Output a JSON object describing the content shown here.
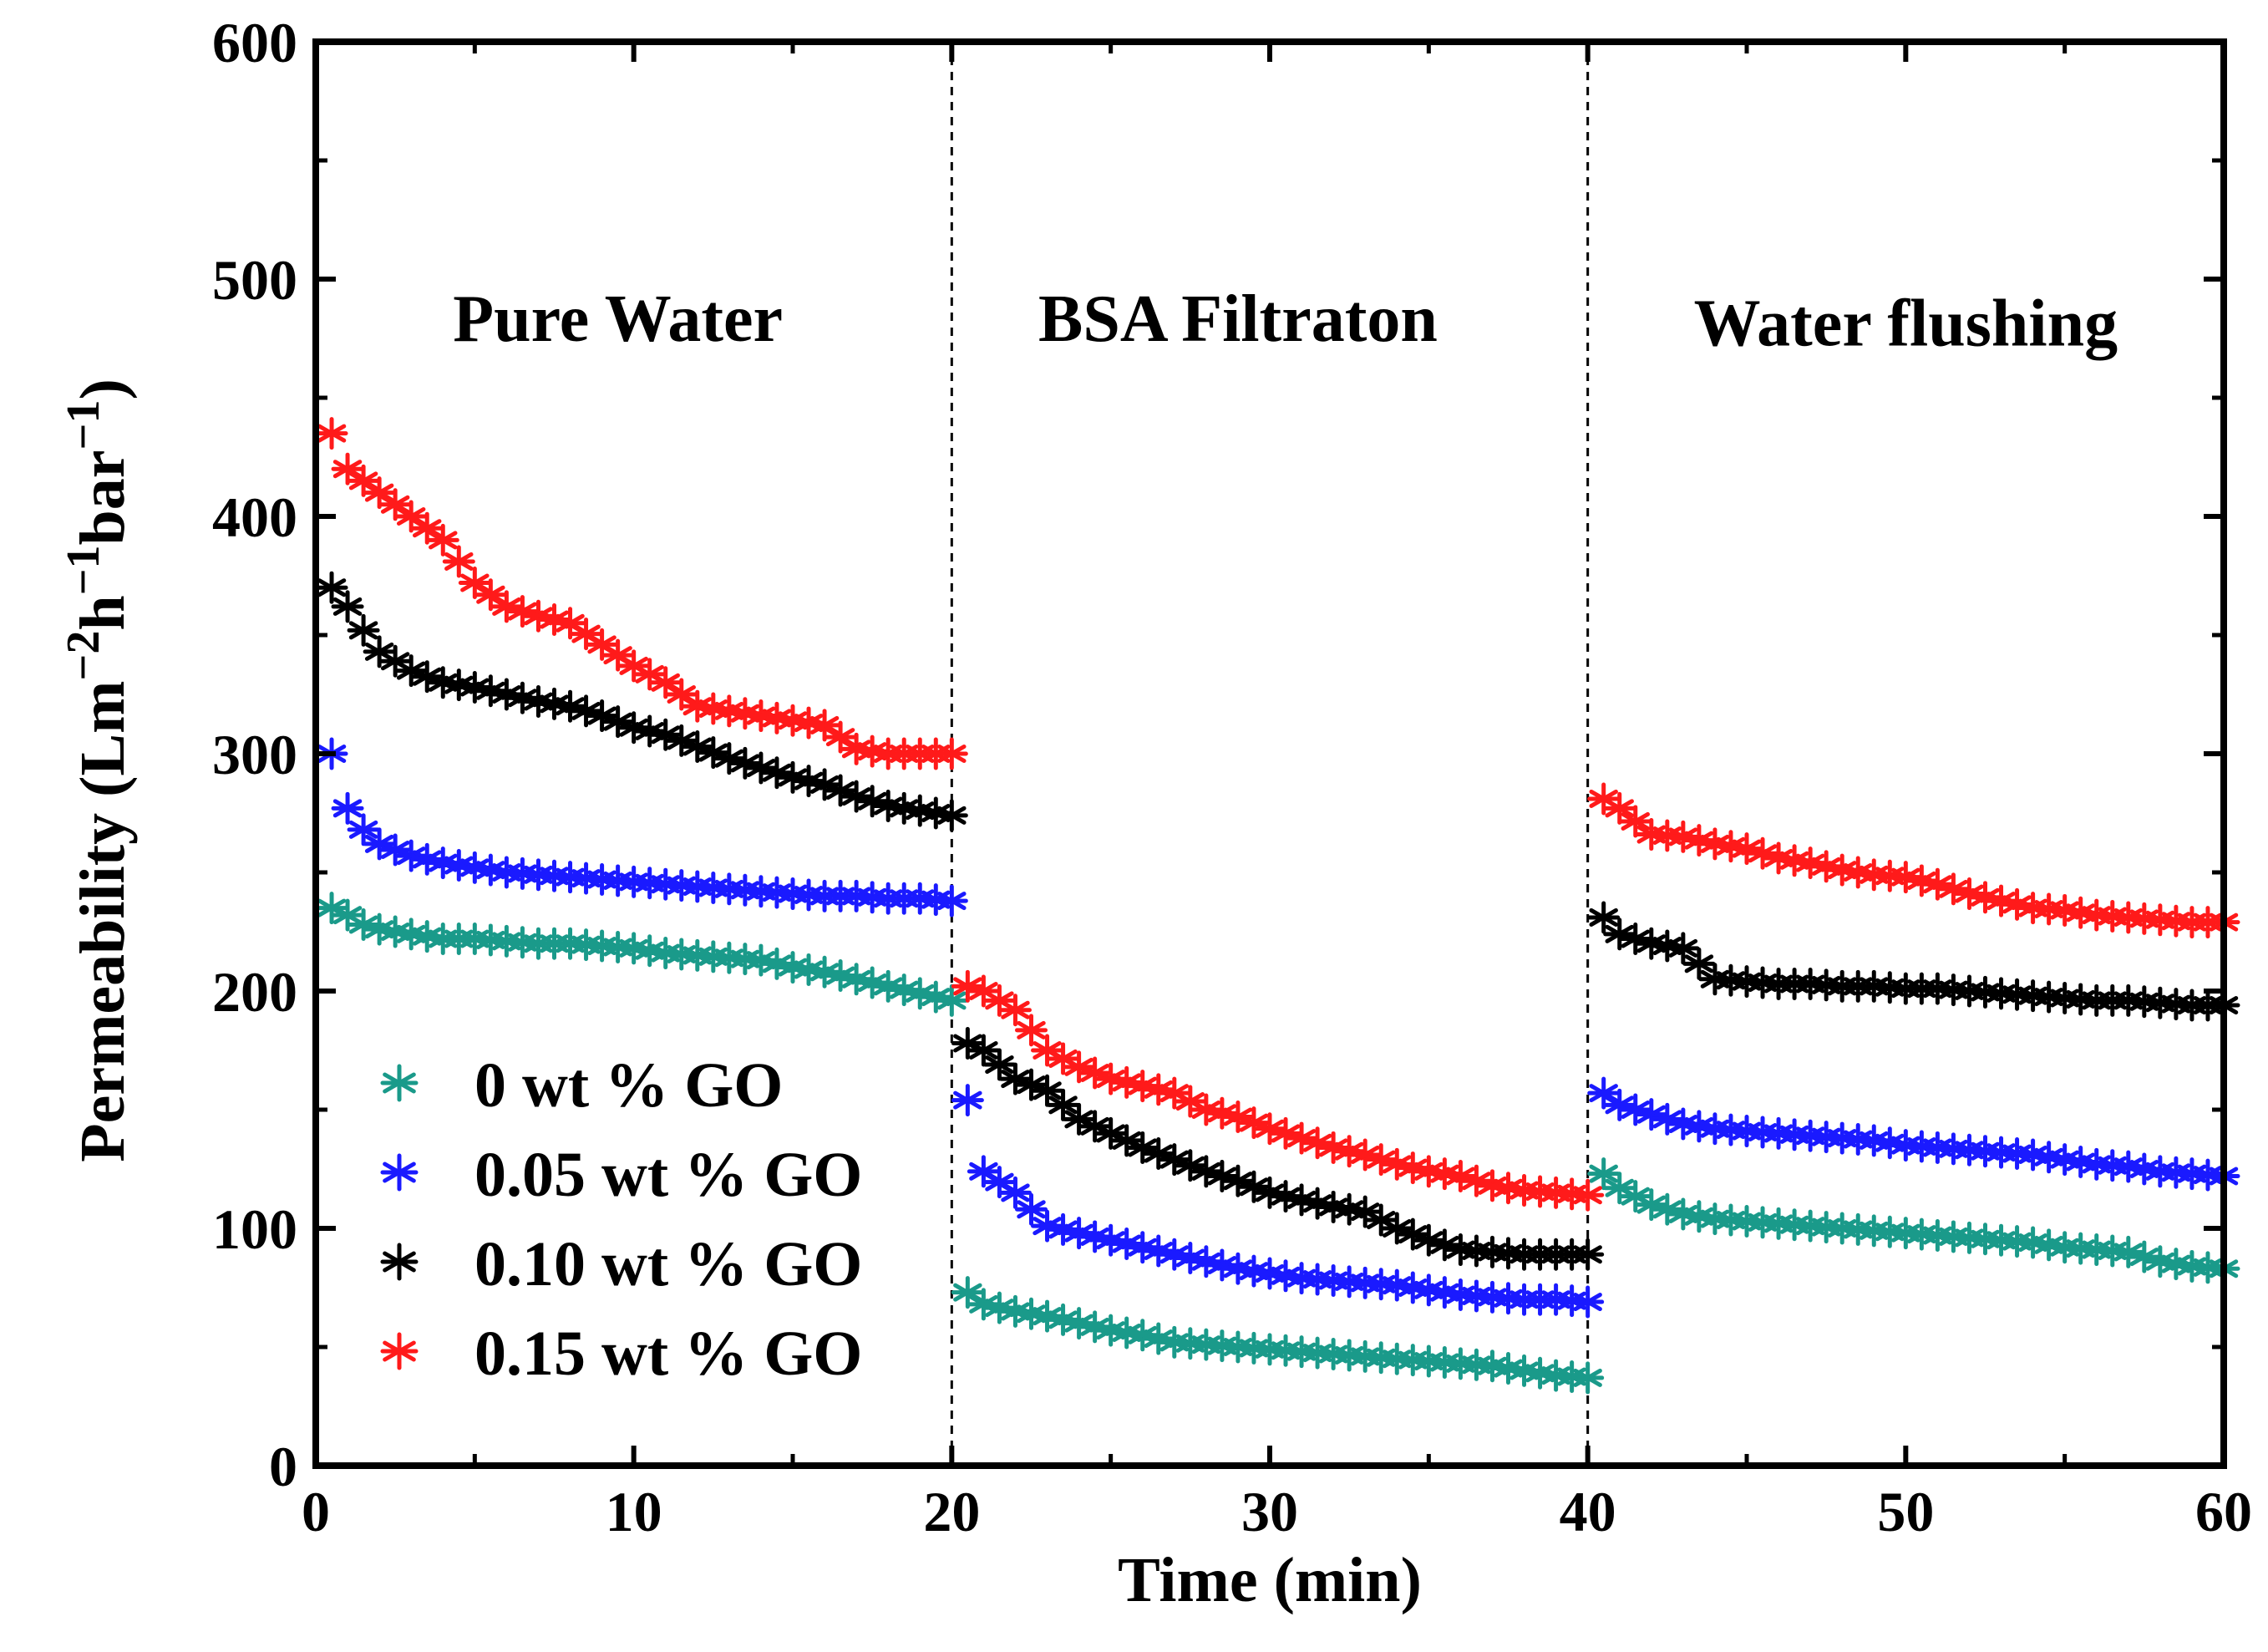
{
  "chart_data": {
    "type": "scatter",
    "xlabel": "Time (min)",
    "ylabel": "Permeability (Lm⁻²h⁻¹bar⁻¹)",
    "ylabel_parts": [
      "Permeability (Lm",
      "−2",
      "h",
      "−1",
      "bar",
      "−1",
      ")"
    ],
    "xlim": [
      0,
      60
    ],
    "ylim": [
      0,
      600
    ],
    "xticks": [
      "0",
      "10",
      "20",
      "30",
      "40",
      "50",
      "60"
    ],
    "yticks": [
      "0",
      "100",
      "200",
      "300",
      "400",
      "500",
      "600"
    ],
    "phase_dividers": [
      20,
      40
    ],
    "phase_labels": [
      {
        "text": "Pure Water",
        "x": 9.5,
        "y": 474
      },
      {
        "text": "BSA Filtraton",
        "x": 29,
        "y": 474
      },
      {
        "text": "Water flushing",
        "x": 50,
        "y": 472
      }
    ],
    "marker": "*",
    "series": [
      {
        "name": "0 wt % GO",
        "color": "#1a9a8a",
        "segments": [
          {
            "t": [
              0.5,
              1,
              1.5,
              2,
              3,
              4,
              5,
              6,
              7,
              8,
              9,
              10,
              11,
              12,
              13,
              14,
              15,
              16,
              17,
              18,
              19,
              20
            ],
            "y": [
              235,
              232,
              228,
              226,
              224,
              222,
              222,
              221,
              220,
              220,
              219,
              218,
              216,
              215,
              214,
              213,
              210,
              208,
              205,
              202,
              199,
              196
            ]
          },
          {
            "t": [
              20.5,
              21,
              22,
              23,
              24,
              25,
              26,
              27,
              28,
              29,
              30,
              31,
              32,
              33,
              34,
              35,
              36,
              37,
              38,
              39,
              40
            ],
            "y": [
              73,
              68,
              65,
              63,
              60,
              57,
              55,
              52,
              51,
              50,
              49,
              48,
              47,
              46,
              45,
              44,
              43,
              42,
              40,
              38,
              37
            ]
          },
          {
            "t": [
              40.5,
              41,
              42,
              43,
              44,
              45,
              46,
              47,
              48,
              49,
              50,
              51,
              52,
              53,
              54,
              55,
              56,
              57,
              58,
              59,
              60
            ],
            "y": [
              123,
              117,
              110,
              106,
              104,
              103,
              102,
              101,
              100,
              99,
              98,
              97,
              96,
              95,
              94,
              92,
              91,
              90,
              86,
              84,
              83
            ]
          }
        ]
      },
      {
        "name": "0.05 wt % GO",
        "color": "#1a1aff",
        "segments": [
          {
            "t": [
              0.5,
              1,
              1.5,
              2,
              3,
              4,
              5,
              6,
              7,
              8,
              9,
              10,
              11,
              12,
              13,
              14,
              15,
              16,
              17,
              18,
              19,
              20
            ],
            "y": [
              300,
              277,
              268,
              262,
              257,
              254,
              252,
              250,
              249,
              248,
              247,
              246,
              245,
              244,
              243,
              242,
              241,
              240,
              240,
              239,
              239,
              238
            ]
          },
          {
            "t": [
              20.5,
              21,
              22,
              23,
              24,
              25,
              26,
              27,
              28,
              29,
              30,
              31,
              32,
              33,
              34,
              35,
              36,
              37,
              38,
              39,
              40
            ],
            "y": [
              154,
              124,
              115,
              101,
              98,
              95,
              92,
              89,
              86,
              83,
              81,
              79,
              78,
              77,
              76,
              74,
              72,
              71,
              70,
              70,
              69
            ]
          },
          {
            "t": [
              40.5,
              41,
              42,
              43,
              44,
              45,
              46,
              47,
              48,
              49,
              50,
              51,
              52,
              53,
              54,
              55,
              56,
              57,
              58,
              59,
              60
            ],
            "y": [
              157,
              152,
              148,
              144,
              142,
              141,
              140,
              139,
              138,
              137,
              135,
              134,
              133,
              132,
              131,
              129,
              127,
              126,
              124,
              123,
              122
            ]
          }
        ]
      },
      {
        "name": "0.10 wt % GO",
        "color": "#000000",
        "segments": [
          {
            "t": [
              0.5,
              1,
              1.5,
              2,
              3,
              4,
              5,
              6,
              7,
              8,
              9,
              10,
              11,
              12,
              13,
              14,
              15,
              16,
              17,
              18,
              19,
              20
            ],
            "y": [
              370,
              362,
              352,
              343,
              335,
              330,
              328,
              325,
              322,
              320,
              316,
              311,
              308,
              303,
              298,
              294,
              290,
              287,
              282,
              278,
              276,
              274
            ]
          },
          {
            "t": [
              20.5,
              21,
              22,
              23,
              24,
              25,
              26,
              27,
              28,
              29,
              30,
              31,
              32,
              33,
              34,
              35,
              36,
              37,
              38,
              39,
              40
            ],
            "y": [
              178,
              175,
              163,
              158,
              146,
              140,
              134,
              129,
              124,
              120,
              115,
              112,
              109,
              107,
              100,
              95,
              91,
              90,
              89,
              89,
              89
            ]
          },
          {
            "t": [
              40.5,
              41,
              42,
              43,
              44,
              45,
              46,
              47,
              48,
              49,
              50,
              51,
              52,
              53,
              54,
              55,
              56,
              57,
              58,
              59,
              60
            ],
            "y": [
              231,
              224,
              220,
              218,
              205,
              204,
              203,
              203,
              202,
              202,
              201,
              201,
              200,
              199,
              198,
              197,
              196,
              196,
              195,
              194,
              194
            ]
          }
        ]
      },
      {
        "name": "0.15 wt % GO",
        "color": "#ff1a1a",
        "segments": [
          {
            "t": [
              0.5,
              1,
              1.5,
              2,
              3,
              4,
              5,
              6,
              7,
              8,
              9,
              10,
              11,
              12,
              13,
              14,
              15,
              16,
              17,
              18,
              19,
              20
            ],
            "y": [
              435,
              420,
              415,
              410,
              400,
              390,
              372,
              362,
              358,
              355,
              346,
              337,
              330,
              320,
              318,
              316,
              314,
              312,
              302,
              300,
              300,
              300
            ]
          },
          {
            "t": [
              20.5,
              21,
              22,
              23,
              24,
              25,
              26,
              27,
              28,
              29,
              30,
              31,
              32,
              33,
              34,
              35,
              36,
              37,
              38,
              39,
              40
            ],
            "y": [
              202,
              200,
              192,
              175,
              168,
              163,
              160,
              157,
              150,
              147,
              142,
              138,
              134,
              131,
              127,
              124,
              122,
              118,
              116,
              115,
              114
            ]
          },
          {
            "t": [
              40.5,
              41,
              42,
              43,
              44,
              45,
              46,
              47,
              48,
              49,
              50,
              51,
              52,
              53,
              54,
              55,
              56,
              57,
              58,
              59,
              60
            ],
            "y": [
              281,
              277,
              266,
              265,
              262,
              260,
              256,
              254,
              251,
              249,
              248,
              245,
              241,
              238,
              235,
              234,
              232,
              231,
              230,
              229,
              229
            ]
          }
        ]
      }
    ],
    "legend": {
      "position": "bottom-left",
      "order": [
        0,
        1,
        2,
        3
      ]
    }
  }
}
